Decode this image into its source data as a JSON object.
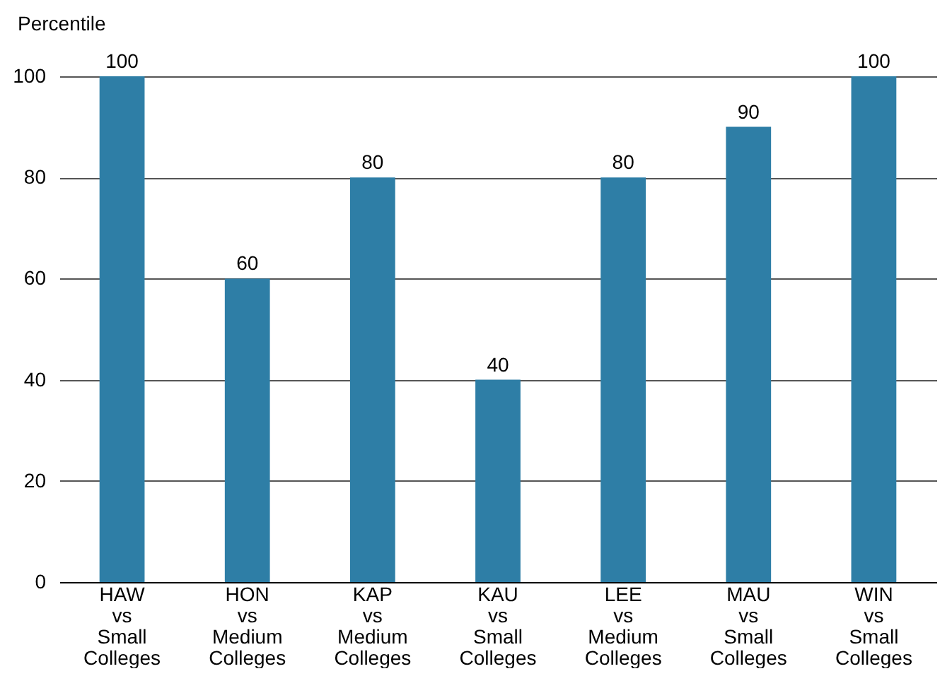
{
  "chart_data": {
    "type": "bar",
    "ylabel": "Percentile",
    "categories": [
      "HAW vs Small Colleges",
      "HON vs Medium Colleges",
      "KAP vs Medium Colleges",
      "KAU vs Small Colleges",
      "LEE vs Medium Colleges",
      "MAU vs Small Colleges",
      "WIN vs Small Colleges"
    ],
    "values": [
      100,
      60,
      80,
      40,
      80,
      90,
      100
    ],
    "color": "#2e7ea6",
    "ylim": [
      0,
      100
    ],
    "yticks": [
      0,
      20,
      40,
      60,
      80,
      100
    ],
    "grid": "y",
    "data_labels": true
  }
}
